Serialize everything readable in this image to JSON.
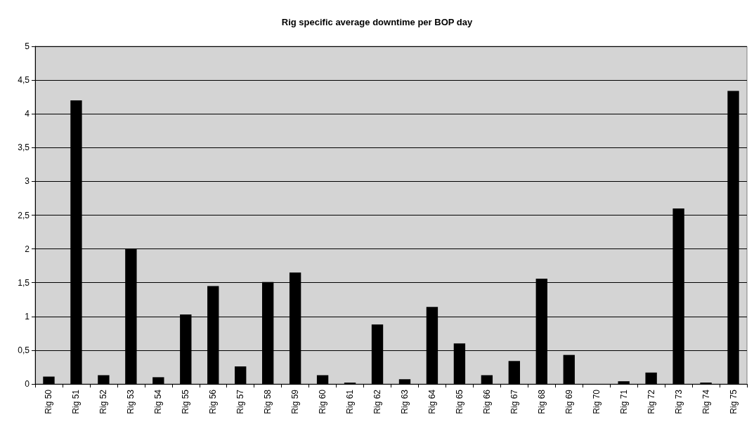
{
  "chart_data": {
    "type": "bar",
    "title": "Rig specific average downtime per BOP day",
    "categories": [
      "Rig 50",
      "Rig 51",
      "Rig 52",
      "Rig 53",
      "Rig 54",
      "Rig 55",
      "Rig 56",
      "Rig 57",
      "Rig 58",
      "Rig 59",
      "Rig 60",
      "Rig 61",
      "Rig 62",
      "Rig 63",
      "Rig 64",
      "Rig 65",
      "Rig 66",
      "Rig 67",
      "Rig 68",
      "Rig 69",
      "Rig 70",
      "Rig 71",
      "Rig 72",
      "Rig 73",
      "Rig 74",
      "Rig 75"
    ],
    "values": [
      0.11,
      4.2,
      0.13,
      2.0,
      0.1,
      1.03,
      1.45,
      0.26,
      1.51,
      1.65,
      0.13,
      0.02,
      0.88,
      0.07,
      1.14,
      0.6,
      0.13,
      0.34,
      1.56,
      0.43,
      0,
      0.04,
      0.17,
      2.6,
      0.02,
      4.34
    ],
    "color": "#000000",
    "ylim": [
      0,
      5
    ],
    "yticks": [
      0,
      {
        "value": 0.5,
        "label": "0,5"
      },
      1,
      {
        "value": 1.5,
        "label": "1,5"
      },
      2,
      {
        "value": 2.5,
        "label": "2,5"
      },
      3,
      {
        "value": 3.5,
        "label": "3,5"
      },
      4,
      {
        "value": 4.5,
        "label": "4,5"
      },
      5
    ],
    "grid": "y"
  }
}
